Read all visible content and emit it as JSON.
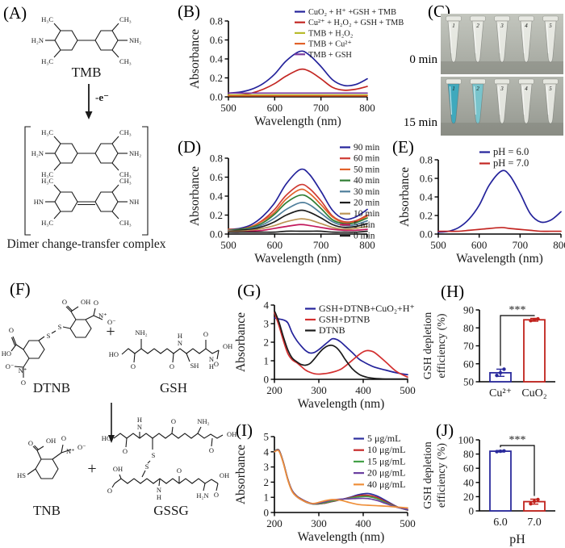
{
  "figure": {
    "panels": {
      "a": "(A)",
      "b": "(B)",
      "c": "(C)",
      "d": "(D)",
      "e": "(E)",
      "f": "(F)",
      "g": "(G)",
      "h": "(H)",
      "i": "(I)",
      "j": "(J)"
    }
  },
  "panel_a": {
    "tmb_caption": "TMB",
    "arrow_label": "-e⁻",
    "dimer_caption": "Dimer change-transfer complex",
    "tmb_atoms": [
      "H₃C",
      "H₂N",
      "H₃C",
      "CH₃",
      "NH₂",
      "CH₃"
    ],
    "dimer_top_atoms": [
      "H₃C",
      "H₂N",
      "H₃C",
      "CH₃",
      "NH₂",
      "CH₃"
    ],
    "dimer_bottom_atoms": [
      "H₃C",
      "HN",
      "H₃C",
      "CH₃",
      "NH",
      "CH₃"
    ]
  },
  "panel_c": {
    "photos": [
      {
        "time_label": "0 min",
        "tube_numbers": [
          "1",
          "2",
          "3",
          "4",
          "5"
        ],
        "tube_fills": [
          "",
          "",
          "",
          "",
          ""
        ]
      },
      {
        "time_label": "15 min",
        "tube_numbers": [
          "1",
          "2",
          "3",
          "4",
          "5"
        ],
        "tube_fills": [
          "#3fa9bd",
          "#79c4cc",
          "",
          "",
          ""
        ]
      }
    ]
  },
  "panel_f": {
    "plus": "+",
    "dtnb_caption": "DTNB",
    "gsh_caption": "GSH",
    "tnb_caption": "TNB",
    "gssg_caption": "GSSG",
    "dtnb_labels": [
      "O",
      "HO",
      "O⁻",
      "N⁺",
      "O",
      "S",
      "S",
      "O",
      "OH",
      "O",
      "N⁺",
      "O⁻"
    ],
    "gsh_labels": [
      "HO",
      "O",
      "NH₂",
      "O",
      "N",
      "H",
      "SH",
      "O",
      "N",
      "H",
      "OH",
      "O"
    ],
    "tnb_labels": [
      "HS",
      "O",
      "OH",
      "N⁺",
      "O",
      "O⁻"
    ],
    "gssg_labels": [
      "HO",
      "O",
      "N",
      "H",
      "O",
      "S",
      "S",
      "NH₂",
      "OH",
      "O",
      "OH",
      "O",
      "N",
      "H",
      "O",
      "H₂N",
      "OH",
      "O"
    ]
  },
  "chart_data": [
    {
      "id": "B",
      "type": "line",
      "title": "",
      "xlabel": "Wavelength (nm)",
      "ylabel": "Absorbance",
      "xlim": [
        500,
        800
      ],
      "ylim": [
        0,
        0.8
      ],
      "xticks": [
        500,
        600,
        700,
        800
      ],
      "yticks": [
        0.0,
        0.2,
        0.4,
        0.6,
        0.8
      ],
      "grid": false,
      "legend_position": "top-right-inside",
      "x": [
        500,
        525,
        550,
        575,
        600,
        625,
        655,
        675,
        700,
        725,
        750,
        775,
        800
      ],
      "series": [
        {
          "name": "CuO₂ + H⁺ +GSH + TMB",
          "color": "#24239b",
          "values": [
            0.04,
            0.05,
            0.08,
            0.14,
            0.24,
            0.38,
            0.48,
            0.44,
            0.32,
            0.18,
            0.12,
            0.13,
            0.19
          ]
        },
        {
          "name": "Cu²⁺ + H₂O₂ + GSH + TMB",
          "color": "#c32723",
          "values": [
            0.02,
            0.02,
            0.04,
            0.08,
            0.14,
            0.22,
            0.29,
            0.27,
            0.19,
            0.1,
            0.07,
            0.08,
            0.11
          ]
        },
        {
          "name": "TMB + H₂O₂",
          "color": "#b8bb2c",
          "values": [
            0.02,
            0.02,
            0.02,
            0.02,
            0.02,
            0.02,
            0.02,
            0.02,
            0.02,
            0.02,
            0.02,
            0.02,
            0.02
          ]
        },
        {
          "name": "TMB + Cu²⁺",
          "color": "#e2622a",
          "values": [
            0.01,
            0.01,
            0.01,
            0.01,
            0.01,
            0.01,
            0.01,
            0.01,
            0.01,
            0.01,
            0.01,
            0.01,
            0.01
          ]
        },
        {
          "name": "TMB + GSH",
          "color": "#7a3a9e",
          "values": [
            0.04,
            0.04,
            0.04,
            0.04,
            0.04,
            0.04,
            0.04,
            0.04,
            0.04,
            0.04,
            0.04,
            0.04,
            0.04
          ]
        }
      ]
    },
    {
      "id": "D",
      "type": "line",
      "title": "",
      "xlabel": "Wavelength (nm)",
      "ylabel": "Absorbance",
      "xlim": [
        500,
        800
      ],
      "ylim": [
        0,
        0.8
      ],
      "xticks": [
        500,
        600,
        700,
        800
      ],
      "yticks": [
        0.0,
        0.2,
        0.4,
        0.6,
        0.8
      ],
      "grid": false,
      "legend_position": "right-outside",
      "x": [
        500,
        525,
        550,
        575,
        600,
        625,
        655,
        675,
        700,
        725,
        750,
        775,
        800
      ],
      "series": [
        {
          "name": "90 min",
          "color": "#24239b",
          "values": [
            0.05,
            0.06,
            0.1,
            0.19,
            0.33,
            0.53,
            0.68,
            0.63,
            0.45,
            0.25,
            0.16,
            0.18,
            0.26
          ]
        },
        {
          "name": "60 min",
          "color": "#cf3b33",
          "values": [
            0.05,
            0.05,
            0.08,
            0.15,
            0.26,
            0.41,
            0.52,
            0.48,
            0.35,
            0.19,
            0.13,
            0.14,
            0.2
          ]
        },
        {
          "name": "50 min",
          "color": "#e2622a",
          "values": [
            0.05,
            0.05,
            0.08,
            0.14,
            0.23,
            0.37,
            0.47,
            0.43,
            0.31,
            0.18,
            0.12,
            0.13,
            0.19
          ]
        },
        {
          "name": "40 min",
          "color": "#2f7d33",
          "values": [
            0.04,
            0.05,
            0.07,
            0.12,
            0.21,
            0.33,
            0.41,
            0.38,
            0.27,
            0.15,
            0.11,
            0.12,
            0.17
          ]
        },
        {
          "name": "30 min",
          "color": "#4f7e9b",
          "values": [
            0.04,
            0.04,
            0.06,
            0.1,
            0.17,
            0.26,
            0.33,
            0.31,
            0.22,
            0.13,
            0.09,
            0.1,
            0.14
          ]
        },
        {
          "name": "20 min",
          "color": "#1c1c1c",
          "values": [
            0.03,
            0.04,
            0.05,
            0.08,
            0.13,
            0.2,
            0.25,
            0.23,
            0.17,
            0.1,
            0.07,
            0.08,
            0.11
          ]
        },
        {
          "name": "10 min",
          "color": "#bd9555",
          "values": [
            0.03,
            0.03,
            0.04,
            0.06,
            0.09,
            0.13,
            0.16,
            0.15,
            0.11,
            0.07,
            0.05,
            0.06,
            0.08
          ]
        },
        {
          "name": "5 min",
          "color": "#c2185b",
          "values": [
            0.02,
            0.02,
            0.03,
            0.04,
            0.06,
            0.08,
            0.1,
            0.09,
            0.07,
            0.05,
            0.04,
            0.04,
            0.05
          ]
        },
        {
          "name": "0 min",
          "color": "#202020",
          "values": [
            0.02,
            0.02,
            0.02,
            0.02,
            0.02,
            0.03,
            0.03,
            0.03,
            0.03,
            0.02,
            0.02,
            0.02,
            0.03
          ]
        }
      ]
    },
    {
      "id": "E",
      "type": "line",
      "title": "",
      "xlabel": "Wavelength (nm)",
      "ylabel": "Absorbance",
      "xlim": [
        500,
        800
      ],
      "ylim": [
        0,
        0.8
      ],
      "xticks": [
        500,
        600,
        700,
        800
      ],
      "yticks": [
        0.0,
        0.2,
        0.4,
        0.6,
        0.8
      ],
      "grid": false,
      "legend_position": "top-right-inside",
      "x": [
        500,
        525,
        550,
        575,
        600,
        625,
        655,
        675,
        700,
        725,
        750,
        775,
        800
      ],
      "series": [
        {
          "name": "pH = 6.0",
          "color": "#24239b",
          "values": [
            0.02,
            0.03,
            0.07,
            0.16,
            0.31,
            0.53,
            0.68,
            0.63,
            0.44,
            0.22,
            0.13,
            0.15,
            0.24
          ]
        },
        {
          "name": "pH = 7.0",
          "color": "#c32723",
          "values": [
            0.03,
            0.03,
            0.03,
            0.04,
            0.05,
            0.06,
            0.07,
            0.06,
            0.05,
            0.04,
            0.03,
            0.03,
            0.03
          ]
        }
      ]
    },
    {
      "id": "G",
      "type": "line",
      "title": "",
      "xlabel": "Wavelength (nm)",
      "ylabel": "Absorbance",
      "xlim": [
        200,
        500
      ],
      "ylim": [
        0,
        4
      ],
      "xticks": [
        200,
        300,
        400,
        500
      ],
      "yticks": [
        0,
        1,
        2,
        3,
        4
      ],
      "grid": false,
      "legend_position": "top-right-inside",
      "x": [
        200,
        210,
        220,
        230,
        240,
        250,
        260,
        270,
        280,
        290,
        300,
        310,
        320,
        330,
        340,
        350,
        360,
        375,
        390,
        400,
        410,
        425,
        450,
        475,
        500
      ],
      "series": [
        {
          "name": "GSH+DTNB+CuO₂+H⁺",
          "color": "#24239b",
          "values": [
            3.3,
            3.25,
            3.2,
            3.05,
            2.5,
            2.1,
            1.8,
            1.55,
            1.42,
            1.45,
            1.6,
            1.8,
            2.0,
            2.18,
            2.15,
            2.0,
            1.78,
            1.45,
            1.1,
            0.95,
            0.82,
            0.66,
            0.5,
            0.35,
            0.25
          ]
        },
        {
          "name": "GSH+DTNB",
          "color": "#d32f2f",
          "values": [
            3.6,
            2.9,
            2.1,
            1.4,
            1.05,
            0.9,
            0.7,
            0.5,
            0.38,
            0.3,
            0.28,
            0.3,
            0.33,
            0.38,
            0.45,
            0.55,
            0.72,
            1.02,
            1.32,
            1.48,
            1.55,
            1.45,
            0.95,
            0.42,
            0.12
          ]
        },
        {
          "name": "DTNB",
          "color": "#1a1a1a",
          "values": [
            3.7,
            3.1,
            2.3,
            1.6,
            1.15,
            0.95,
            0.8,
            0.76,
            0.85,
            1.1,
            1.4,
            1.65,
            1.8,
            1.83,
            1.7,
            1.42,
            1.05,
            0.58,
            0.28,
            0.17,
            0.1,
            0.05,
            0.02,
            0.02,
            0.02
          ]
        }
      ]
    },
    {
      "id": "I",
      "type": "line",
      "title": "",
      "xlabel": "Wavelength (nm)",
      "ylabel": "Absorbance",
      "xlim": [
        200,
        500
      ],
      "ylim": [
        0,
        5
      ],
      "xticks": [
        200,
        300,
        400,
        500
      ],
      "yticks": [
        0,
        1,
        2,
        3,
        4,
        5
      ],
      "grid": false,
      "legend_position": "top-right-inside",
      "x": [
        200,
        210,
        220,
        230,
        240,
        250,
        260,
        275,
        290,
        310,
        330,
        350,
        370,
        390,
        410,
        430,
        450,
        475,
        500
      ],
      "series": [
        {
          "name": "5 μg/mL",
          "color": "#2d2f9e",
          "values": [
            4.0,
            4.1,
            3.3,
            2.2,
            1.45,
            1.1,
            0.9,
            0.68,
            0.56,
            0.6,
            0.72,
            0.85,
            1.0,
            1.18,
            1.25,
            1.1,
            0.8,
            0.4,
            0.15
          ]
        },
        {
          "name": "10 μg/mL",
          "color": "#c62828",
          "values": [
            4.05,
            4.12,
            3.32,
            2.22,
            1.42,
            1.08,
            0.88,
            0.66,
            0.55,
            0.6,
            0.73,
            0.85,
            0.97,
            1.1,
            1.13,
            1.0,
            0.72,
            0.38,
            0.16
          ]
        },
        {
          "name": "15 μg/mL",
          "color": "#43a047",
          "values": [
            4.05,
            4.1,
            3.3,
            2.2,
            1.4,
            1.06,
            0.86,
            0.64,
            0.55,
            0.62,
            0.75,
            0.86,
            0.94,
            1.03,
            1.05,
            0.92,
            0.66,
            0.36,
            0.18
          ]
        },
        {
          "name": "20 μg/mL",
          "color": "#6a3fa0",
          "values": [
            4.02,
            4.08,
            3.28,
            2.18,
            1.4,
            1.05,
            0.85,
            0.64,
            0.57,
            0.68,
            0.82,
            0.88,
            0.9,
            0.93,
            0.92,
            0.8,
            0.6,
            0.35,
            0.2
          ]
        },
        {
          "name": "40 μg/mL",
          "color": "#ef8f3a",
          "values": [
            4.0,
            4.05,
            3.25,
            2.15,
            1.38,
            1.05,
            0.85,
            0.65,
            0.6,
            0.75,
            0.85,
            0.8,
            0.65,
            0.52,
            0.48,
            0.45,
            0.42,
            0.36,
            0.3
          ]
        }
      ]
    },
    {
      "id": "H",
      "type": "bar",
      "title": "",
      "xlabel": "",
      "ylabel": "GSH depletion efficiency (%)",
      "ylabel_lines": [
        "GSH depletion",
        "efficiency (%)"
      ],
      "categories": [
        "Cu²⁺",
        "CuO₂"
      ],
      "values": [
        55,
        84.5
      ],
      "errors": [
        2.0,
        0.8
      ],
      "points": [
        [
          53.5,
          55,
          57
        ],
        [
          84,
          84.6,
          85
        ]
      ],
      "colors": [
        "#2a2a9c",
        "#c0221c"
      ],
      "ylim": [
        50,
        90
      ],
      "yticks": [
        50,
        60,
        70,
        80,
        90
      ],
      "significance": "***",
      "grid": false
    },
    {
      "id": "J",
      "type": "bar",
      "title": "",
      "xlabel": "pH",
      "ylabel": "GSH depletion efficiency (%)",
      "ylabel_lines": [
        "GSH depletion",
        "efficiency (%)"
      ],
      "categories": [
        "6.0",
        "7.0"
      ],
      "values": [
        84,
        13
      ],
      "errors": [
        1.0,
        3.5
      ],
      "points": [
        [
          83.5,
          84,
          84.5
        ],
        [
          10,
          13.5,
          16
        ]
      ],
      "colors": [
        "#2a2a9c",
        "#c0221c"
      ],
      "ylim": [
        0,
        100
      ],
      "yticks": [
        0,
        20,
        40,
        60,
        80,
        100
      ],
      "significance": "***",
      "grid": false
    }
  ]
}
